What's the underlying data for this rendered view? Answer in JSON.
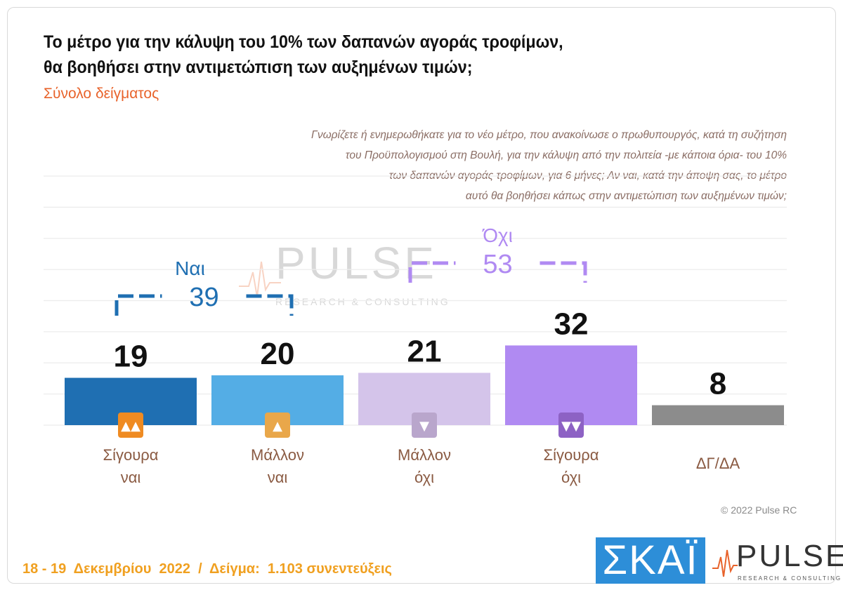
{
  "header": {
    "title_line1": "Το μέτρο για την κάλυψη του 10% των δαπανών αγοράς τροφίμων,",
    "title_line2": "θα βοηθήσει στην αντιμετώπιση των αυξημένων τιμών;",
    "subtitle": "Σύνολο δείγματος"
  },
  "question": {
    "lines": [
      "Γνωρίζετε ή ενημερωθήκατε για το νέο μέτρο, που ανακοίνωσε ο πρωθυπουργός, κατά τη συζήτηση",
      "του Προϋπολογισμού στη Βουλή, για την κάλυψη από την πολιτεία -με κάποια όρια- του 10%",
      "των δαπανών αγοράς τροφίμων, για 6 μήνες; Αν ναι, κατά την άποψη σας, το μέτρο",
      "αυτό θα βοηθήσει κάπως στην αντιμετώπιση των αυξημένων τιμών;"
    ]
  },
  "watermark": {
    "text": "PULSE",
    "sub": "RESEARCH & CONSULTING"
  },
  "chart_data": {
    "type": "bar",
    "categories": [
      [
        "Σίγουρα",
        "ναι"
      ],
      [
        "Μάλλον",
        "ναι"
      ],
      [
        "Μάλλον",
        "όχι"
      ],
      [
        "Σίγουρα",
        "όχι"
      ],
      [
        "ΔΓ/ΔΑ"
      ]
    ],
    "values": [
      19,
      20,
      21,
      32,
      8
    ],
    "colors": [
      "#1f6fb2",
      "#54ade5",
      "#d4c4ea",
      "#b08af2",
      "#8c8c8c"
    ],
    "icons": [
      "double-thumbs-up-icon",
      "thumbs-up-icon",
      "thumbs-down-icon",
      "double-thumbs-down-icon",
      ""
    ],
    "icon_colors": [
      "#ef8b22",
      "#e9a74a",
      "#b9a6cc",
      "#8d62c4",
      ""
    ],
    "groups": [
      {
        "label": "Ναι",
        "total": 39,
        "color": "#1f6fb2",
        "from": 0,
        "to": 1
      },
      {
        "label": "Όχι",
        "total": 53,
        "color": "#b08af2",
        "from": 2,
        "to": 3
      }
    ],
    "ylim": [
      0,
      100
    ],
    "grid": true
  },
  "copyright": "© 2022 Pulse RC",
  "footer": "18 - 19  Δεκεμβρίου  2022  /  Δείγμα:  1.103 συνεντεύξεις",
  "logos": {
    "skai": "ΣΚΑΪ",
    "pulse": "PULSE",
    "pulse_sub": "RESEARCH & CONSULTING"
  }
}
